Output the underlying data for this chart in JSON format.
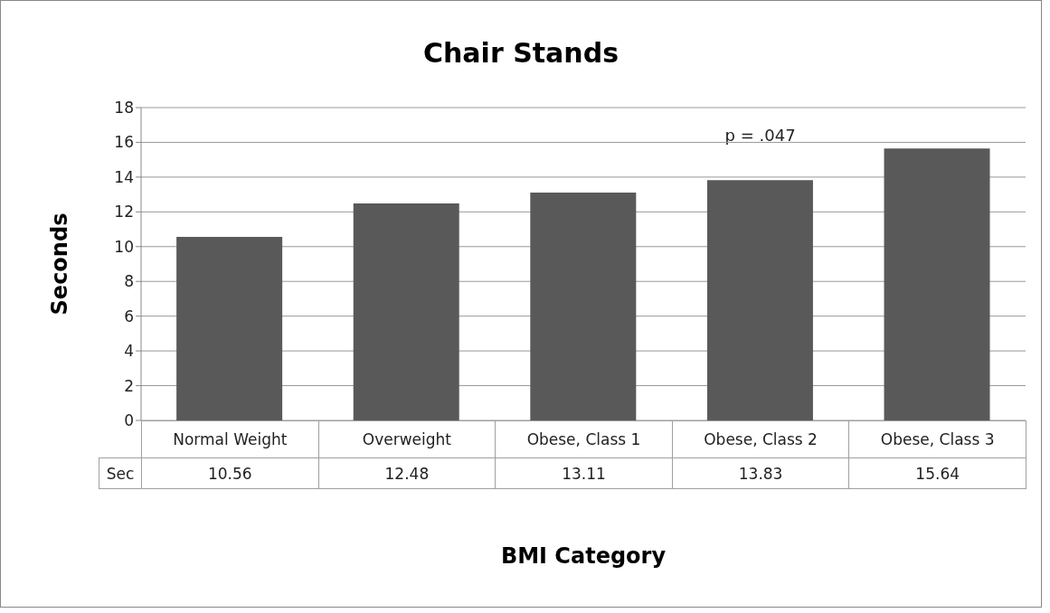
{
  "chart_data": {
    "type": "bar",
    "title": "Chair Stands",
    "xlabel": "BMI Category",
    "ylabel": "Seconds",
    "categories": [
      "Normal Weight",
      "Overweight",
      "Obese, Class 1",
      "Obese, Class 2",
      "Obese, Class 3"
    ],
    "series": [
      {
        "name": "Sec",
        "color": "#595959",
        "values": [
          10.56,
          12.48,
          13.11,
          13.83,
          15.64
        ]
      }
    ],
    "ylim": [
      0,
      18
    ],
    "yticks": [
      0,
      2,
      4,
      6,
      8,
      10,
      12,
      14,
      16,
      18
    ],
    "grid": "y",
    "data_labels": true,
    "annotations": [
      "p = .047"
    ]
  }
}
